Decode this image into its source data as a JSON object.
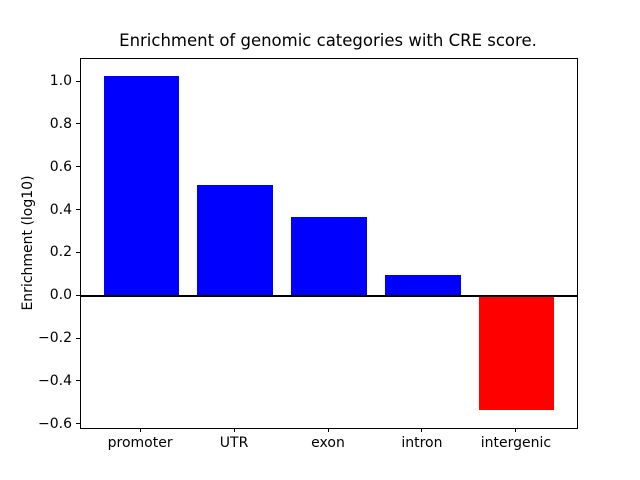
{
  "chart_data": {
    "type": "bar",
    "title": "Enrichment of genomic categories with CRE score.",
    "ylabel": "Enrichment (log10)",
    "xlabel": "",
    "categories": [
      "promoter",
      "UTR",
      "exon",
      "intron",
      "intergenic"
    ],
    "values": [
      1.03,
      0.52,
      0.37,
      0.1,
      -0.53
    ],
    "bar_colors": [
      "#0000ff",
      "#0000ff",
      "#0000ff",
      "#0000ff",
      "#ff0000"
    ],
    "positive_color": "#0000ff",
    "negative_color": "#ff0000",
    "bar_width": 0.8,
    "xlim": [
      -0.64,
      4.64
    ],
    "ylim": [
      -0.615,
      1.108
    ],
    "yticks": [
      1.0,
      0.8,
      0.6,
      0.4,
      0.2,
      0.0,
      -0.2,
      -0.4,
      -0.6
    ],
    "ytick_labels": [
      "1.0",
      "0.8",
      "0.6",
      "0.4",
      "0.2",
      "0.0",
      "−0.2",
      "−0.4",
      "−0.6"
    ],
    "zero_line": true,
    "grid": false,
    "legend": null,
    "background_color": "#ffffff",
    "axis_color": "#000000"
  }
}
